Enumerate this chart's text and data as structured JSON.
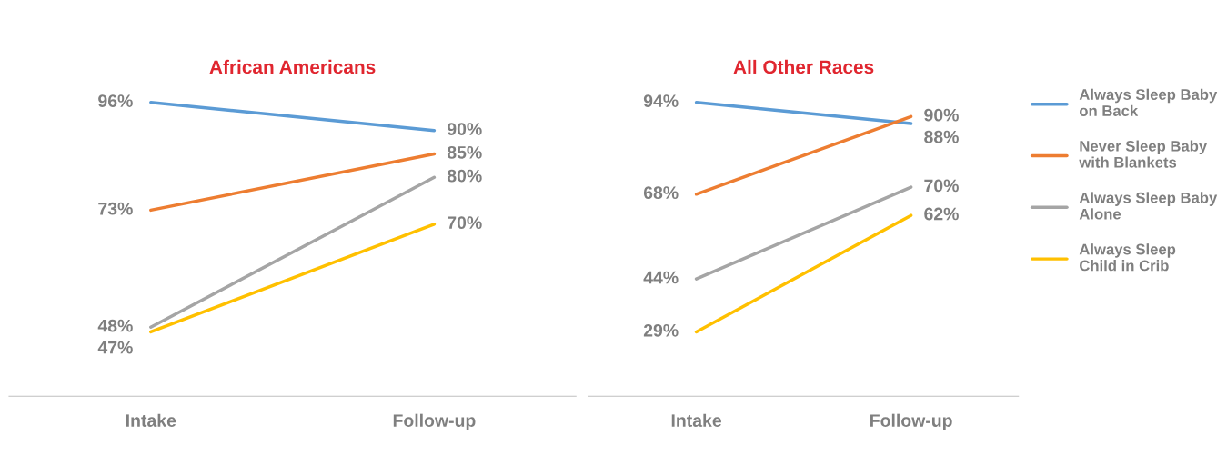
{
  "chart_data": [
    {
      "type": "line",
      "title": "African Americans",
      "categories": [
        "Intake",
        "Follow-up"
      ],
      "grid": false,
      "series": [
        {
          "color": "#5b9bd5",
          "values": [
            96,
            90
          ],
          "value_labels": [
            "96%",
            "90%"
          ]
        },
        {
          "color": "#ed7d31",
          "values": [
            73,
            85
          ],
          "value_labels": [
            "73%",
            "85%"
          ]
        },
        {
          "color": "#a5a5a5",
          "values": [
            48,
            80
          ],
          "value_labels": [
            "48%",
            "80%"
          ]
        },
        {
          "color": "#ffc000",
          "values": [
            47,
            70
          ],
          "value_labels": [
            "47%",
            "70%"
          ]
        }
      ]
    },
    {
      "type": "line",
      "title": "All Other Races",
      "categories": [
        "Intake",
        "Follow-up"
      ],
      "legend": "right",
      "grid": false,
      "series": [
        {
          "name": "Always Sleep Baby on Back",
          "color": "#5b9bd5",
          "values": [
            94,
            88
          ],
          "value_labels": [
            "94%",
            "88%"
          ]
        },
        {
          "name": "Never Sleep Baby with Blankets",
          "color": "#ed7d31",
          "values": [
            68,
            90
          ],
          "value_labels": [
            "68%",
            "90%"
          ]
        },
        {
          "name": "Always Sleep Baby Alone",
          "color": "#a5a5a5",
          "values": [
            44,
            70
          ],
          "value_labels": [
            "44%",
            "70%"
          ]
        },
        {
          "name": "Always Sleep Child in Crib",
          "color": "#ffc000",
          "values": [
            29,
            62
          ],
          "value_labels": [
            "29%",
            "62%"
          ]
        }
      ]
    }
  ]
}
